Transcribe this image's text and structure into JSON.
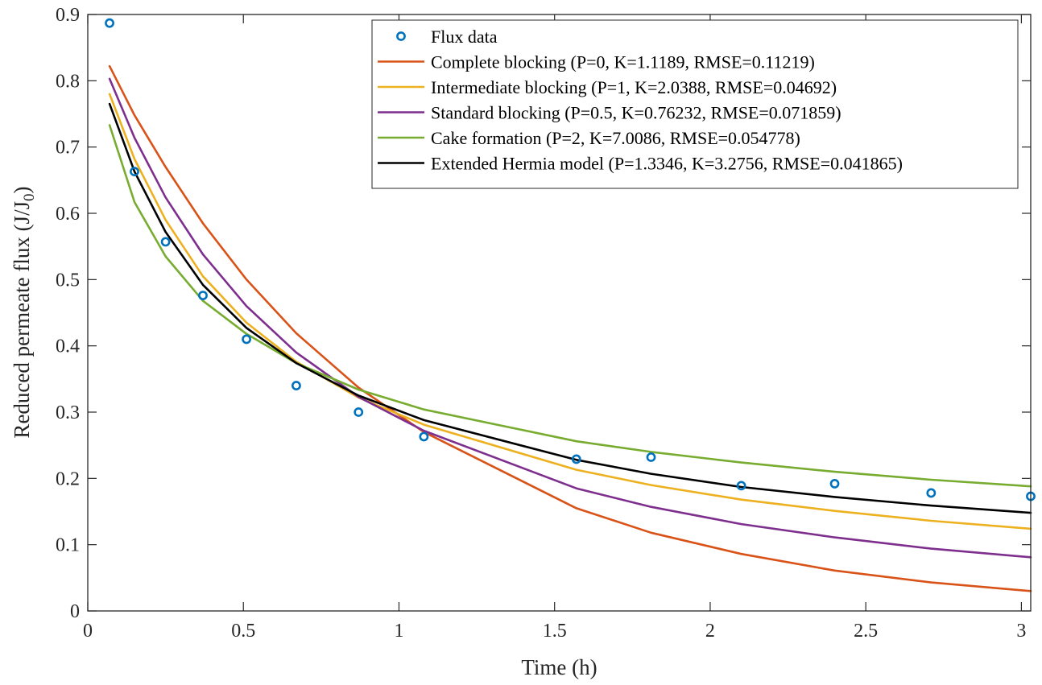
{
  "chart_data": {
    "type": "line",
    "title": "",
    "xlabel": "Time (h)",
    "ylabel_main": "Reduced permeate flux (J/J",
    "ylabel_sub": "0",
    "ylabel_tail": ")",
    "xlim": [
      0,
      3.03
    ],
    "ylim": [
      0,
      0.9
    ],
    "xticks": [
      0,
      0.5,
      1,
      1.5,
      2,
      2.5,
      3
    ],
    "xtick_labels": [
      "0",
      "0.5",
      "1",
      "1.5",
      "2",
      "2.5",
      "3"
    ],
    "yticks": [
      0,
      0.1,
      0.2,
      0.3,
      0.4,
      0.5,
      0.6,
      0.7,
      0.8,
      0.9
    ],
    "ytick_labels": [
      "0",
      "0.1",
      "0.2",
      "0.3",
      "0.4",
      "0.5",
      "0.6",
      "0.7",
      "0.8",
      "0.9"
    ],
    "grid": false,
    "legend_position": "top-right",
    "scatter": {
      "name": "Flux data",
      "color": "#0072BD",
      "x": [
        0.07,
        0.15,
        0.25,
        0.37,
        0.51,
        0.67,
        0.87,
        1.08,
        1.57,
        1.81,
        2.1,
        2.4,
        2.71,
        3.03
      ],
      "y": [
        0.887,
        0.663,
        0.557,
        0.476,
        0.41,
        0.34,
        0.3,
        0.263,
        0.229,
        0.232,
        0.189,
        0.192,
        0.178,
        0.173
      ]
    },
    "x": [
      0.07,
      0.15,
      0.25,
      0.37,
      0.51,
      0.67,
      0.87,
      1.08,
      1.57,
      1.81,
      2.1,
      2.4,
      2.71,
      3.03
    ],
    "series": [
      {
        "name": "Complete blocking (P=0, K=1.1189, RMSE=0.11219)",
        "color": "#D95319",
        "values": [
          0.822,
          0.748,
          0.67,
          0.585,
          0.5,
          0.419,
          0.337,
          0.27,
          0.155,
          0.118,
          0.086,
          0.061,
          0.043,
          0.03
        ]
      },
      {
        "name": "Intermediate blocking (P=1, K=2.0388, RMSE=0.04692)",
        "color": "#EDB120",
        "values": [
          0.78,
          0.682,
          0.59,
          0.505,
          0.435,
          0.376,
          0.322,
          0.281,
          0.213,
          0.19,
          0.168,
          0.151,
          0.136,
          0.124
        ]
      },
      {
        "name": "Standard blocking (P=0.5, K=0.76232, RMSE=0.071859)",
        "color": "#7E2F8E",
        "values": [
          0.803,
          0.714,
          0.624,
          0.538,
          0.46,
          0.39,
          0.323,
          0.272,
          0.185,
          0.157,
          0.131,
          0.111,
          0.094,
          0.081
        ]
      },
      {
        "name": "Cake formation (P=2, K=7.0086, RMSE=0.054778)",
        "color": "#77AC30",
        "values": [
          0.733,
          0.617,
          0.535,
          0.468,
          0.418,
          0.374,
          0.334,
          0.304,
          0.256,
          0.24,
          0.224,
          0.21,
          0.198,
          0.188
        ]
      },
      {
        "name": "Extended Hermia model (P=1.3346, K=3.2756, RMSE=0.041865)",
        "color": "#000000",
        "values": [
          0.765,
          0.663,
          0.572,
          0.492,
          0.427,
          0.374,
          0.325,
          0.288,
          0.228,
          0.207,
          0.187,
          0.172,
          0.159,
          0.148
        ]
      }
    ]
  }
}
